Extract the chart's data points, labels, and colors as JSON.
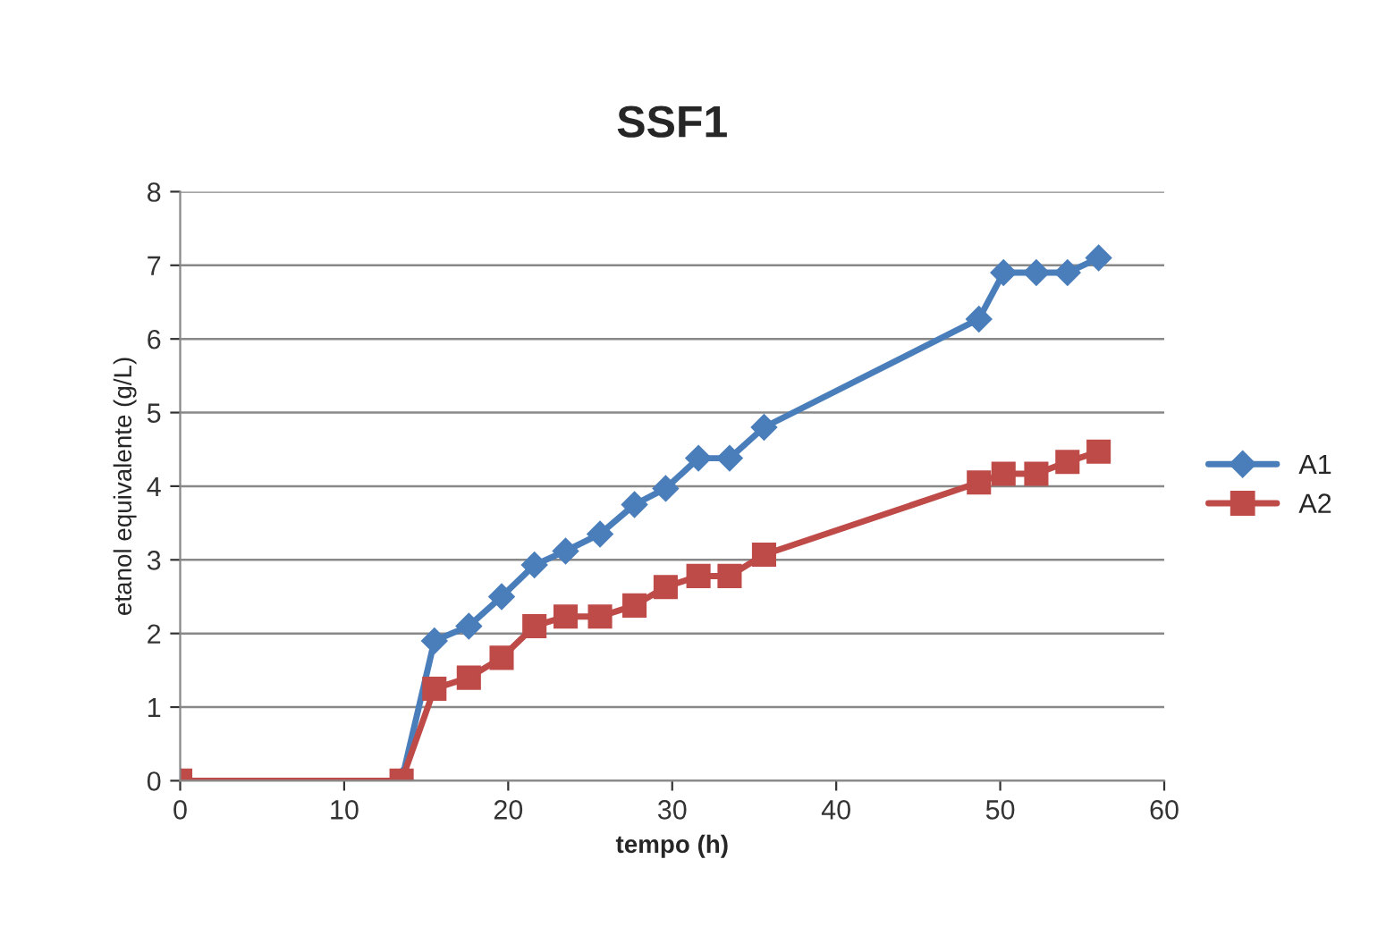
{
  "chart_data": {
    "type": "line",
    "title": "SSF1",
    "xlabel": "tempo (h)",
    "ylabel": "etanol equivalente (g/L)",
    "xlim": [
      0,
      60
    ],
    "xticks": [
      0,
      10,
      20,
      30,
      40,
      50,
      60
    ],
    "ylim": [
      0,
      8
    ],
    "yticks": [
      0,
      1,
      2,
      3,
      4,
      5,
      6,
      7,
      8
    ],
    "grid": "y",
    "legend": "right",
    "series": [
      {
        "name": "A1",
        "color": "#4a7ebb",
        "marker": "diamond",
        "x": [
          0,
          13.5,
          15.5,
          17.6,
          19.6,
          21.6,
          23.5,
          25.6,
          27.7,
          29.6,
          31.6,
          33.5,
          35.6,
          48.7,
          50.2,
          52.2,
          54.1,
          56
        ],
        "values": [
          0,
          0,
          1.9,
          2.1,
          2.5,
          2.93,
          3.12,
          3.35,
          3.75,
          3.97,
          4.38,
          4.38,
          4.8,
          6.27,
          6.9,
          6.9,
          6.9,
          7.1
        ]
      },
      {
        "name": "A2",
        "color": "#be4b48",
        "marker": "square",
        "x": [
          0,
          13.5,
          15.5,
          17.6,
          19.6,
          21.6,
          23.5,
          25.6,
          27.7,
          29.6,
          31.6,
          33.5,
          35.6,
          48.7,
          50.2,
          52.2,
          54.1,
          56
        ],
        "values": [
          0,
          0,
          1.25,
          1.4,
          1.67,
          2.1,
          2.23,
          2.23,
          2.38,
          2.63,
          2.78,
          2.78,
          3.07,
          4.05,
          4.17,
          4.17,
          4.33,
          4.47
        ]
      }
    ]
  }
}
